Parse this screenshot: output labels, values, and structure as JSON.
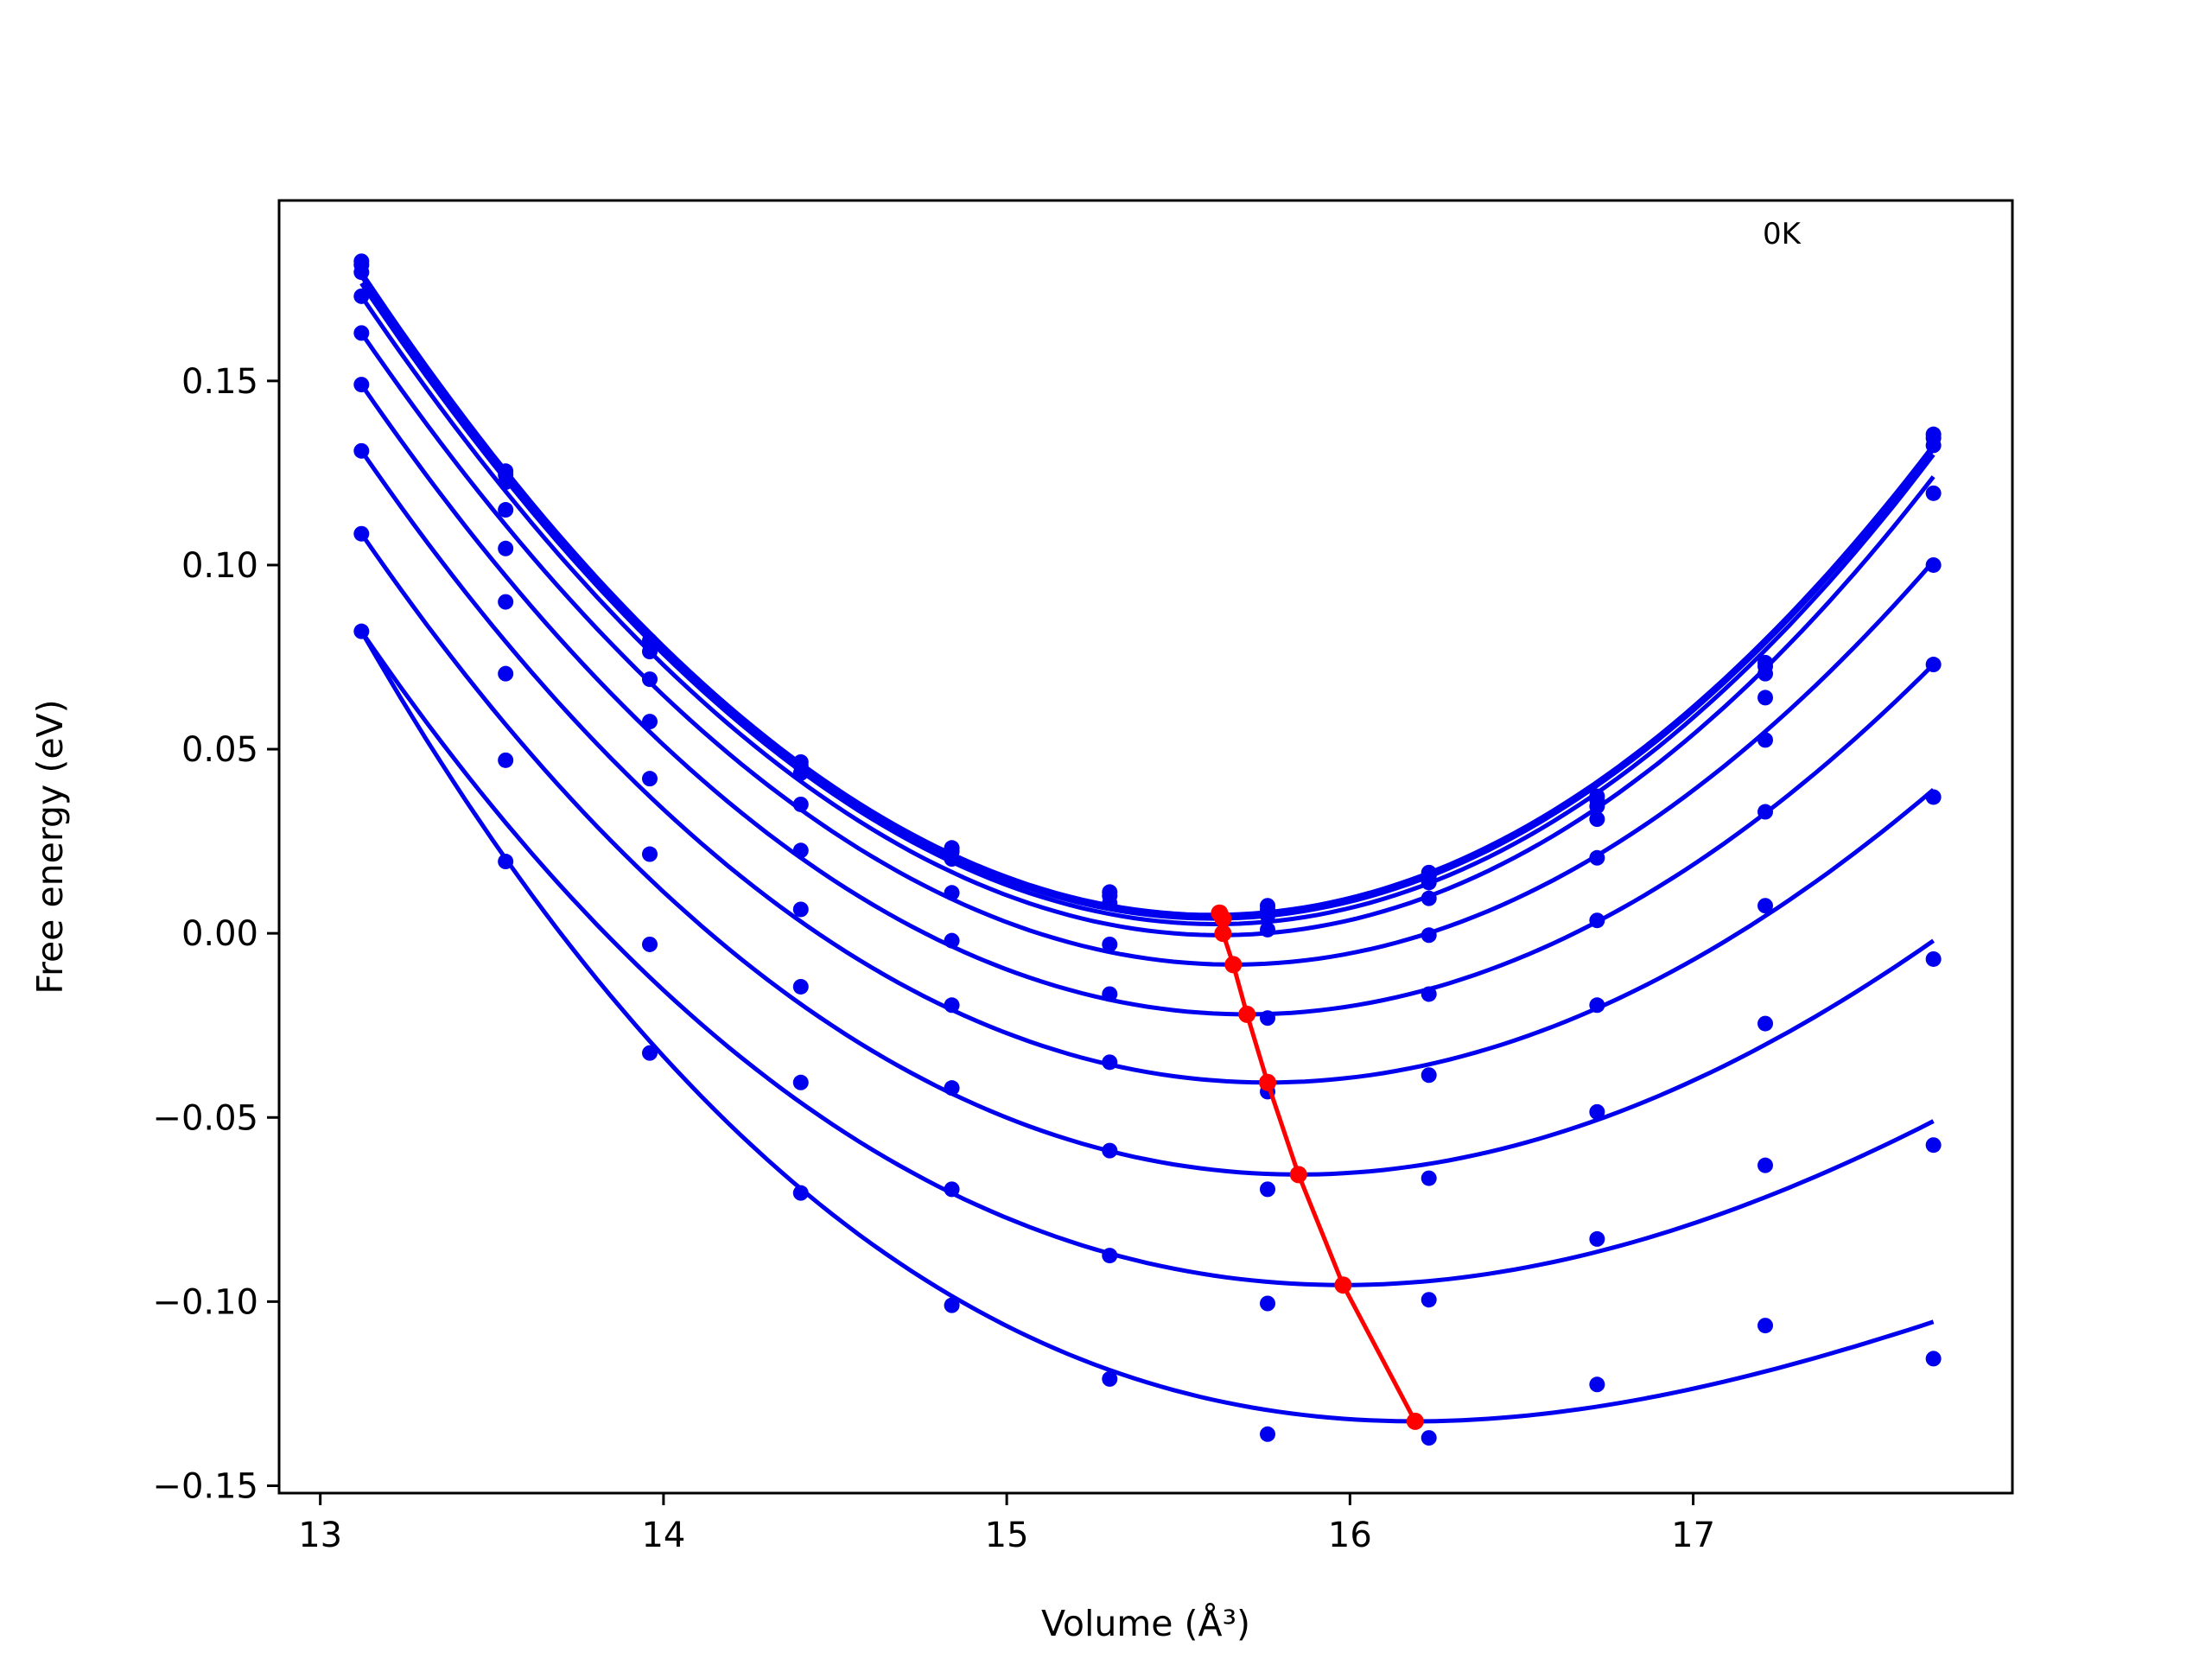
{
  "chart_data": {
    "type": "line",
    "xlabel": "Volume (Å³)",
    "ylabel": "Free energy (eV)",
    "annotation": "0K",
    "xlim": [
      12.88,
      17.93
    ],
    "ylim": [
      -0.152,
      0.199
    ],
    "xticks": [
      13,
      14,
      15,
      16,
      17
    ],
    "xtick_labels": [
      "13",
      "14",
      "15",
      "16",
      "17"
    ],
    "yticks": [
      -0.15,
      -0.1,
      -0.05,
      0.0,
      0.05,
      0.1,
      0.15
    ],
    "ytick_labels": [
      "−0.15",
      "−0.10",
      "−0.05",
      "0.00",
      "0.05",
      "0.10",
      "0.15"
    ],
    "grid": false,
    "colors": {
      "fit": "#0000ee",
      "points": "#0000ee",
      "minima": "#ff0000"
    },
    "volumes": [
      13.12,
      13.54,
      13.96,
      14.4,
      14.84,
      15.3,
      15.76,
      16.23,
      16.72,
      17.21,
      17.7
    ],
    "series": [
      {
        "points": [
          0.1825,
          0.1255,
          0.0795,
          0.0465,
          0.0232,
          0.0112,
          0.0075,
          0.0165,
          0.0372,
          0.0735,
          0.1355
        ],
        "min_v": 15.6,
        "min_f": 0.005,
        "y_left": 0.1795,
        "y_right": 0.1325
      },
      {
        "points": [
          0.1815,
          0.1245,
          0.0785,
          0.0455,
          0.0222,
          0.0102,
          0.0065,
          0.0155,
          0.0362,
          0.0725,
          0.1345
        ],
        "min_v": 15.6,
        "min_f": 0.004,
        "y_left": 0.1785,
        "y_right": 0.1315
      },
      {
        "points": [
          0.1795,
          0.1225,
          0.0765,
          0.0435,
          0.0202,
          0.0082,
          0.0048,
          0.0138,
          0.0345,
          0.0705,
          0.1325
        ],
        "min_v": 15.61,
        "min_f": 0.0025,
        "y_left": 0.1765,
        "y_right": 0.13
      },
      {
        "points": [
          0.173,
          0.115,
          0.069,
          0.035,
          0.011,
          -0.003,
          0.001,
          0.0095,
          0.031,
          0.064,
          0.1195
        ],
        "min_v": 15.62,
        "min_f": -0.0005,
        "y_left": 0.173,
        "y_right": 0.124
      },
      {
        "points": [
          0.163,
          0.1045,
          0.0575,
          0.0225,
          -0.002,
          -0.0165,
          -0.023,
          -0.0005,
          0.0205,
          0.0525,
          0.1
        ],
        "min_v": 15.66,
        "min_f": -0.0085,
        "y_left": 0.163,
        "y_right": 0.101
      },
      {
        "points": [
          0.149,
          0.09,
          0.042,
          0.0065,
          -0.0195,
          -0.035,
          -0.043,
          -0.0165,
          0.0035,
          0.033,
          0.073
        ],
        "min_v": 15.7,
        "min_f": -0.022,
        "y_left": 0.149,
        "y_right": 0.073
      },
      {
        "points": [
          0.131,
          0.0705,
          0.0215,
          -0.0145,
          -0.042,
          -0.059,
          -0.041,
          -0.0385,
          -0.0195,
          0.0075,
          0.037
        ],
        "min_v": 15.76,
        "min_f": -0.0405,
        "y_left": 0.131,
        "y_right": 0.039
      },
      {
        "points": [
          0.1085,
          0.047,
          -0.003,
          -0.0405,
          -0.0695,
          -0.0875,
          -0.0695,
          -0.0665,
          -0.0485,
          -0.0245,
          -0.007
        ],
        "min_v": 15.85,
        "min_f": -0.0655,
        "y_left": 0.1085,
        "y_right": -0.002
      },
      {
        "points": [
          0.082,
          0.0195,
          -0.0325,
          -0.0705,
          -0.101,
          -0.121,
          -0.1005,
          -0.0995,
          -0.083,
          -0.063,
          -0.0575
        ],
        "min_v": 15.98,
        "min_f": -0.0955,
        "y_left": 0.082,
        "y_right": -0.051
      },
      {
        "points": [
          null,
          null,
          null,
          null,
          null,
          null,
          -0.136,
          -0.137,
          -0.1225,
          -0.1065,
          -0.1155
        ],
        "min_v": 16.19,
        "min_f": -0.1325,
        "y_left": 0.082,
        "y_right": -0.1055
      }
    ],
    "minima_line": {
      "x": [
        15.62,
        15.63,
        15.63,
        15.66,
        15.7,
        15.76,
        15.85,
        15.98,
        16.19
      ],
      "y": [
        0.0055,
        0.004,
        0.0,
        -0.0085,
        -0.022,
        -0.0405,
        -0.0655,
        -0.0955,
        -0.1325
      ]
    }
  }
}
